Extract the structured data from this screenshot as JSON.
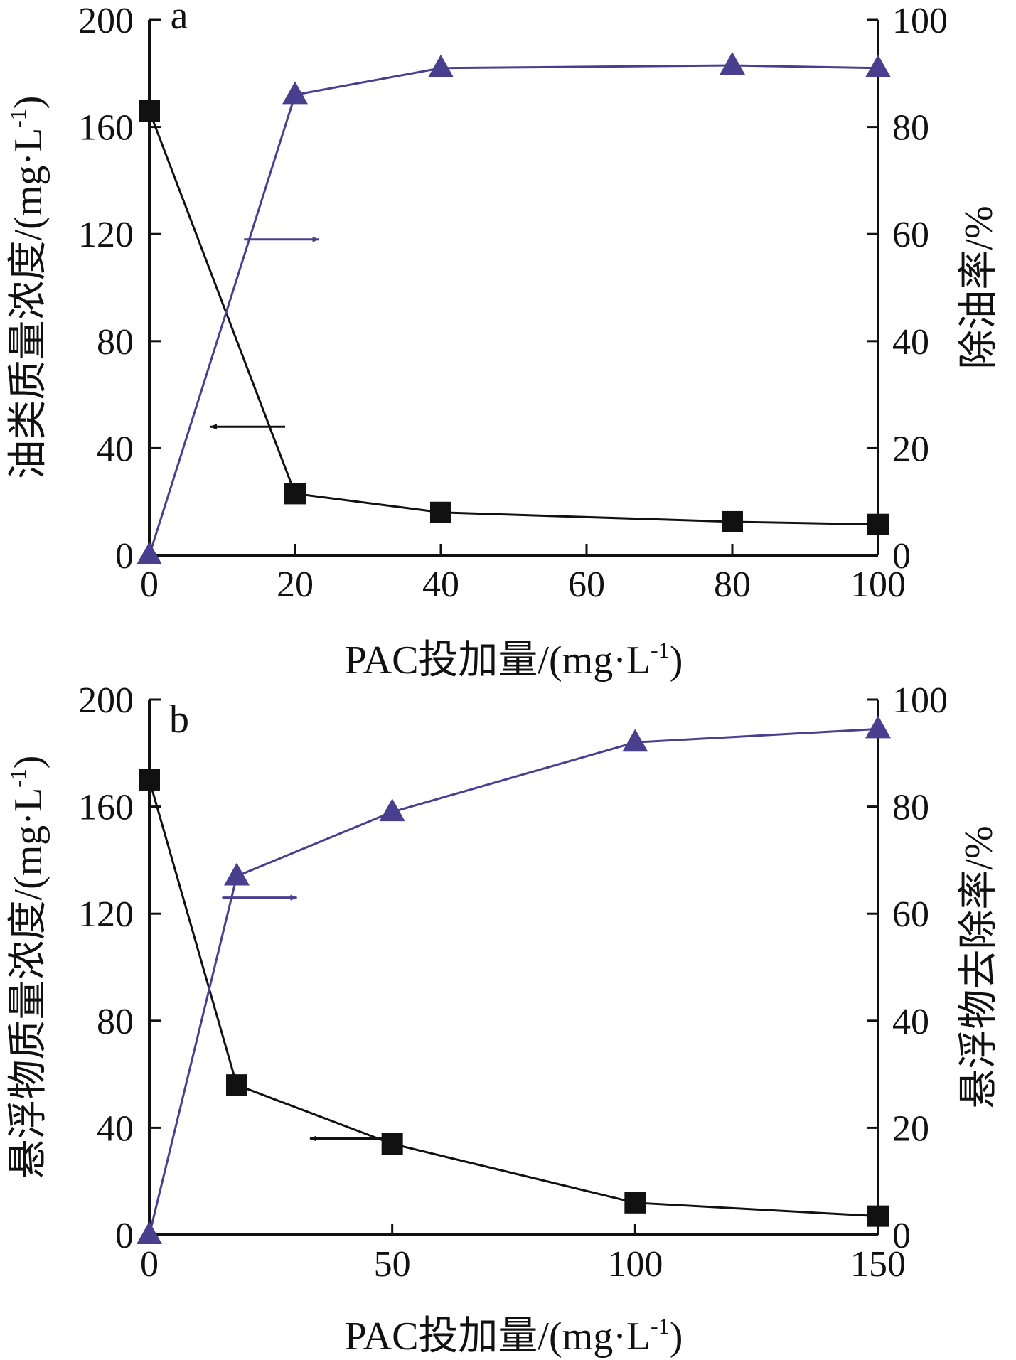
{
  "chart_data": [
    {
      "panel_label": "a",
      "type": "line",
      "xlabel": "PAC投加量/(mg·L",
      "xlabel_sup": "-1",
      "xlabel_close": ")",
      "ylabel_left": "油类质量浓度/(mg·L",
      "ylabel_left_sup": "-1",
      "ylabel_left_close": ")",
      "ylabel_right": "除油率/%",
      "xlim": [
        0,
        100
      ],
      "xticks": [
        0,
        20,
        40,
        60,
        80,
        100
      ],
      "ylim_left": [
        0,
        200
      ],
      "yticks_left": [
        0,
        40,
        80,
        120,
        160,
        200
      ],
      "ylim_right": [
        0,
        100
      ],
      "yticks_right": [
        0,
        20,
        40,
        60,
        80,
        100
      ],
      "series": [
        {
          "axis": "left",
          "marker": "square",
          "color": "#111111",
          "x": [
            0,
            20,
            40,
            80,
            100
          ],
          "y": [
            166,
            23,
            16,
            12.5,
            11.5
          ]
        },
        {
          "axis": "right",
          "marker": "triangle",
          "color": "#4a3f8f",
          "x": [
            0,
            20,
            40,
            80,
            100
          ],
          "y": [
            0,
            86,
            91,
            91.5,
            91
          ]
        }
      ],
      "annotations": [
        {
          "type": "arrow",
          "direction": "right",
          "points_to": "right-axis",
          "color": "#4a3f8f",
          "x": 13,
          "y": 118
        },
        {
          "type": "arrow",
          "direction": "left",
          "points_to": "left-axis",
          "color": "#111111",
          "x": 13,
          "y": 48
        }
      ]
    },
    {
      "panel_label": "b",
      "type": "line",
      "xlabel": "PAC投加量/(mg·L",
      "xlabel_sup": "-1",
      "xlabel_close": ")",
      "ylabel_left": "悬浮物质量浓度/(mg·L",
      "ylabel_left_sup": "-1",
      "ylabel_left_close": ")",
      "ylabel_right": "悬浮物去除率/%",
      "xlim": [
        0,
        150
      ],
      "xticks": [
        0,
        50,
        100,
        150
      ],
      "ylim_left": [
        0,
        200
      ],
      "yticks_left": [
        0,
        40,
        80,
        120,
        160,
        200
      ],
      "ylim_right": [
        0,
        100
      ],
      "yticks_right": [
        0,
        20,
        40,
        60,
        80,
        100
      ],
      "series": [
        {
          "axis": "left",
          "marker": "square",
          "color": "#111111",
          "x": [
            0,
            18,
            50,
            100,
            150
          ],
          "y": [
            170,
            56,
            34,
            12,
            7
          ]
        },
        {
          "axis": "right",
          "marker": "triangle",
          "color": "#4a3f8f",
          "x": [
            0,
            18,
            50,
            100,
            150
          ],
          "y": [
            0,
            67,
            79,
            92,
            94.5
          ]
        }
      ],
      "annotations": [
        {
          "type": "arrow",
          "direction": "right",
          "points_to": "right-axis",
          "color": "#4a3f8f",
          "x": 15,
          "y": 126
        },
        {
          "type": "arrow",
          "direction": "left",
          "points_to": "left-axis",
          "color": "#111111",
          "x": 40,
          "y": 36
        }
      ]
    }
  ]
}
